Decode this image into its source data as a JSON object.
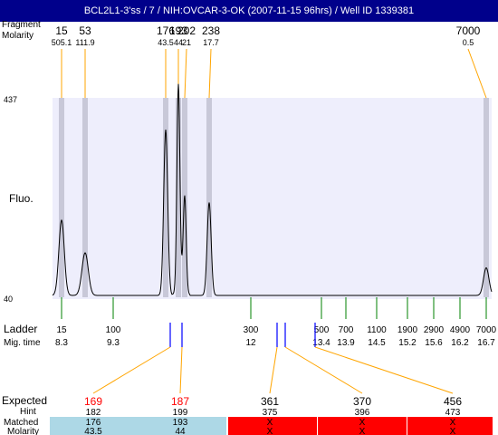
{
  "title": "BCL2L1-3'ss / 7 / NIH:OVCAR-3-OK (2007-11-15 96hrs) / Well ID 1339381",
  "header_labels": {
    "fragment": "Fragment",
    "molarity": "Molarity"
  },
  "y_axis": {
    "label": "Fluo.",
    "max_tick": "437",
    "min_tick": "40"
  },
  "ladder_labels": {
    "ladder": "Ladder",
    "mig_time": "Mig. time"
  },
  "table_labels": {
    "expected": "Expected",
    "hint": "Hint",
    "matched": "Matched",
    "molarity": "Molarity"
  },
  "colors": {
    "title_bg": "#00008b",
    "plot_bg": "#eeeefc",
    "band": "#c8c8d8",
    "trace": "#000000",
    "ladder_tick": "#008000",
    "connector": "#ffa500",
    "marker": "#0000ff",
    "expected_red": "#ff0000",
    "matched_ok": "#add8e6",
    "matched_fail": "#ff0000"
  },
  "chart_data": {
    "type": "line",
    "title": "BCL2L1-3'ss / 7 / NIH:OVCAR-3-OK (2007-11-15 96hrs) / Well ID 1339381",
    "ylabel": "Fluo.",
    "ylim": [
      40,
      437
    ],
    "x_unit": "bp (ladder scale)",
    "peaks": [
      {
        "size": "15",
        "molarity": "505.1",
        "x_bp": 15,
        "height": 190
      },
      {
        "size": "53",
        "molarity": "111.9",
        "x_bp": 53,
        "height": 125
      },
      {
        "size": "176",
        "molarity": "43.5",
        "x_bp": 176,
        "height": 370
      },
      {
        "size": "193",
        "molarity": "44",
        "x_bp": 193,
        "height": 437
      },
      {
        "size": "202",
        "molarity": "21",
        "x_bp": 202,
        "height": 220
      },
      {
        "size": "238",
        "molarity": "17.7",
        "x_bp": 238,
        "height": 225
      },
      {
        "size": "7000",
        "molarity": "0.5",
        "x_bp": 7000,
        "height": 95
      }
    ],
    "ladder": [
      {
        "bp": "15",
        "mig_time": "8.3"
      },
      {
        "bp": "100",
        "mig_time": "9.3"
      },
      {
        "bp": "300",
        "mig_time": "12"
      },
      {
        "bp": "500",
        "mig_time": "13.4"
      },
      {
        "bp": "700",
        "mig_time": "13.9"
      },
      {
        "bp": "1100",
        "mig_time": "14.5"
      },
      {
        "bp": "1900",
        "mig_time": "15.2"
      },
      {
        "bp": "2900",
        "mig_time": "15.6"
      },
      {
        "bp": "4900",
        "mig_time": "16.2"
      },
      {
        "bp": "7000",
        "mig_time": "16.7"
      }
    ],
    "expected": [
      {
        "expected": "169",
        "hint": "182",
        "matched": "176",
        "molarity": "43.5",
        "status": "matched"
      },
      {
        "expected": "187",
        "hint": "199",
        "matched": "193",
        "molarity": "44",
        "status": "matched"
      },
      {
        "expected": "361",
        "hint": "375",
        "matched": "X",
        "molarity": "X",
        "status": "missing"
      },
      {
        "expected": "370",
        "hint": "396",
        "matched": "X",
        "molarity": "X",
        "status": "missing"
      },
      {
        "expected": "456",
        "hint": "473",
        "matched": "X",
        "molarity": "X",
        "status": "missing"
      }
    ]
  }
}
